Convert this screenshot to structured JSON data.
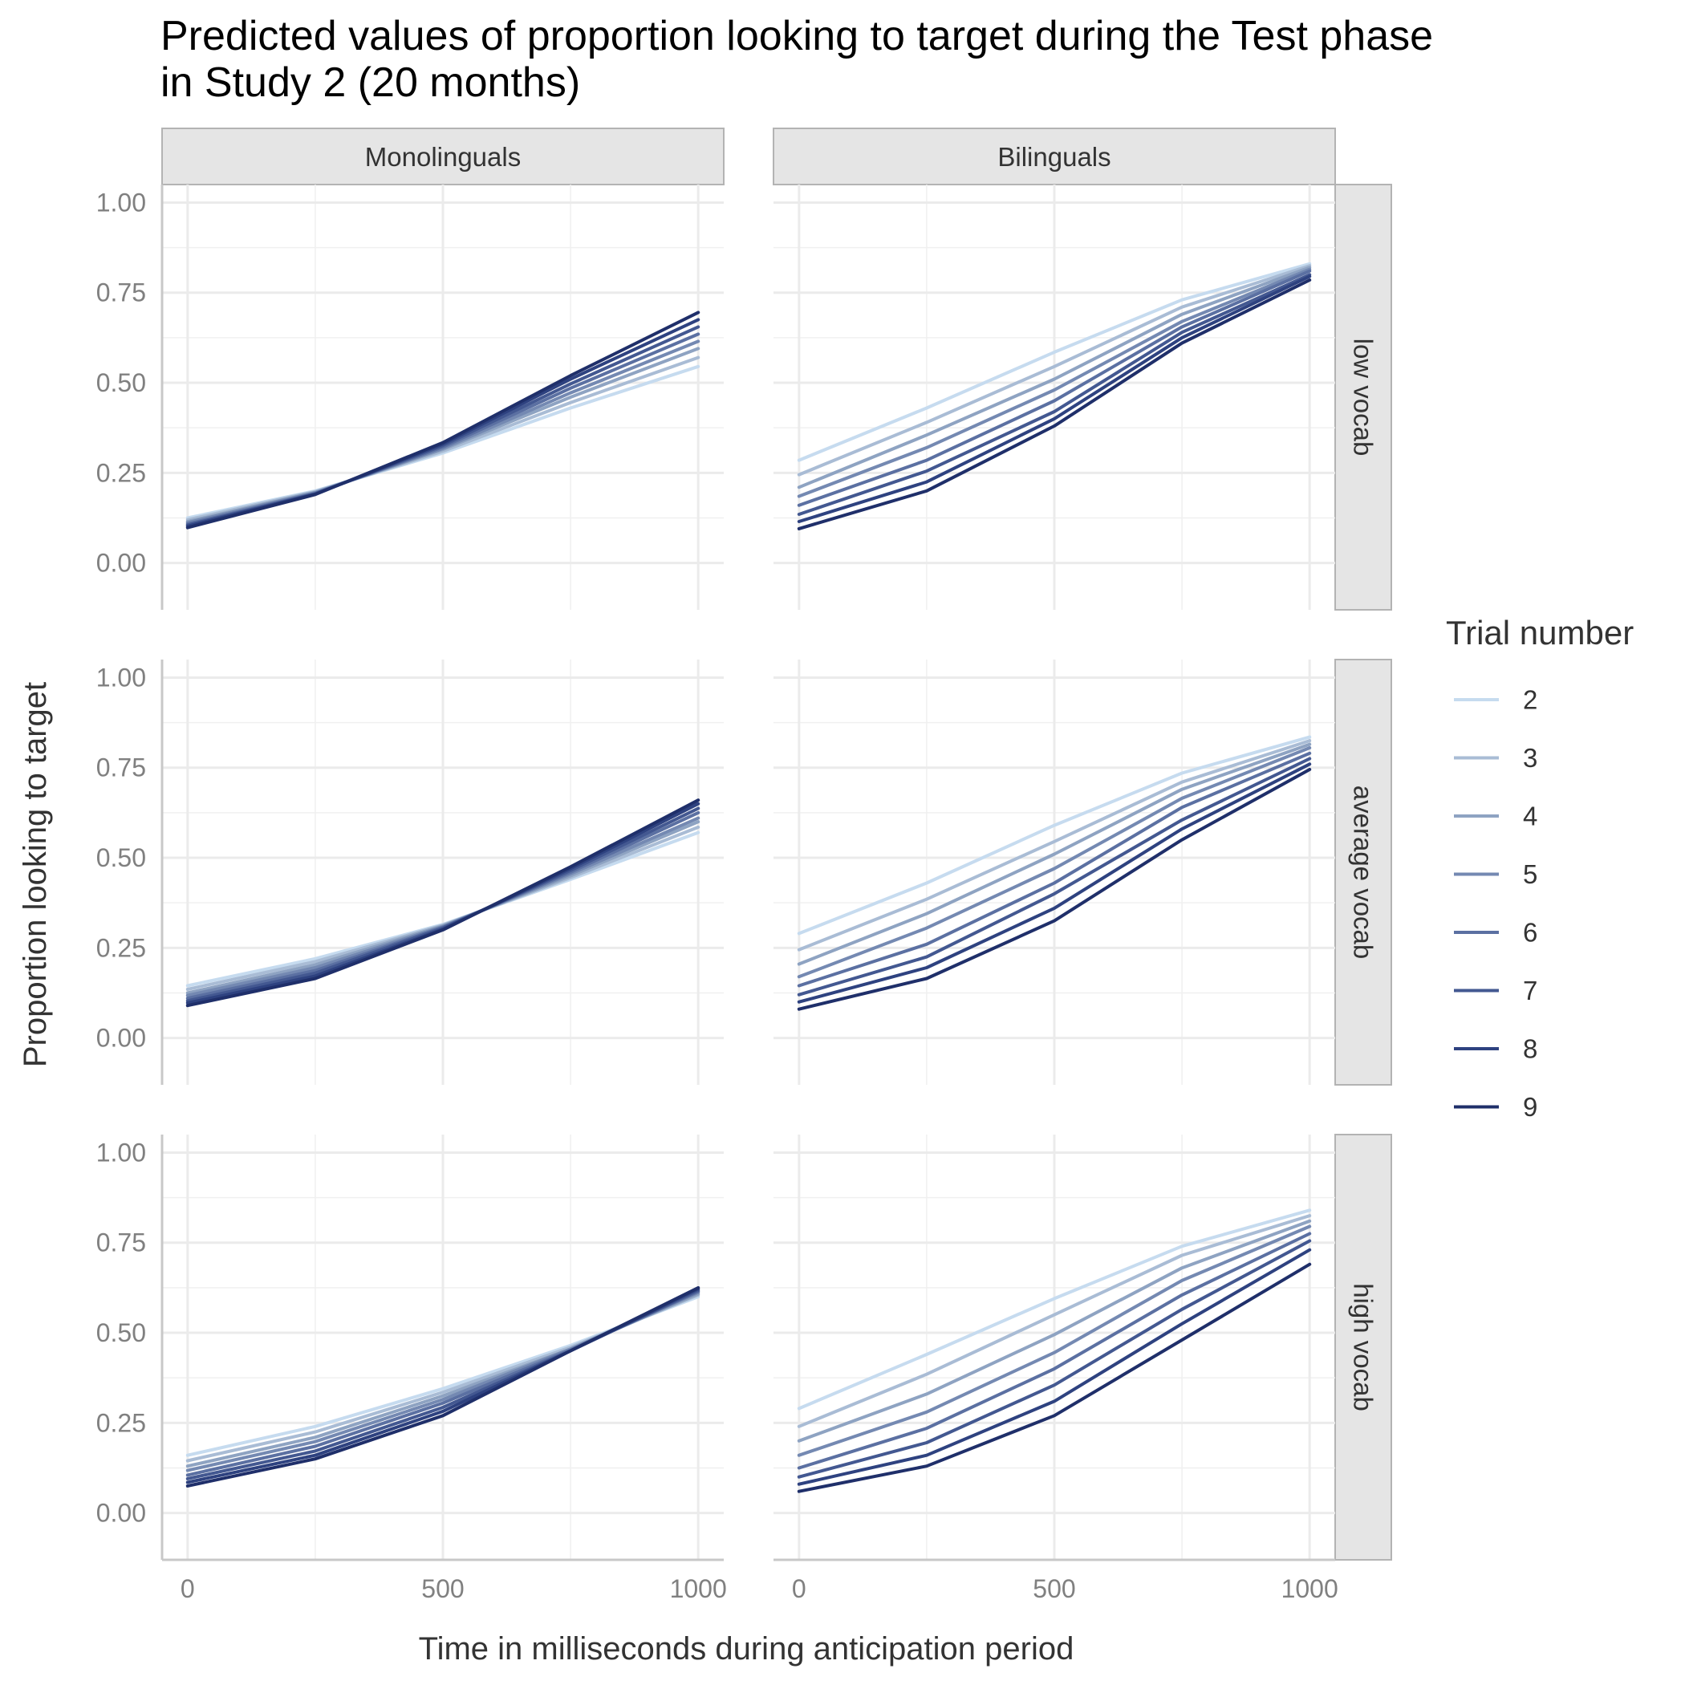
{
  "chart_data": {
    "type": "line",
    "title_lines": [
      "Predicted values of proportion looking to target during the Test phase",
      "in Study 2 (20 months)"
    ],
    "xlabel": "Time in milliseconds during anticipation period",
    "ylabel": "Proportion looking to target",
    "xlim": [
      -50,
      1050
    ],
    "ylim": [
      -0.13,
      1.05
    ],
    "x_ticks": [
      0,
      500,
      1000
    ],
    "x_tick_labels": [
      "0",
      "500",
      "1000"
    ],
    "y_ticks": [
      0,
      0.25,
      0.5,
      0.75,
      1.0
    ],
    "y_tick_labels": [
      "0.00",
      "0.25",
      "0.50",
      "0.75",
      "1.00"
    ],
    "grid": true,
    "facet_columns": [
      "Monolinguals",
      "Bilinguals"
    ],
    "facet_rows": [
      "low vocab",
      "average vocab",
      "high vocab"
    ],
    "legend": {
      "title": "Trial number",
      "position": "right",
      "entries": [
        "2",
        "3",
        "4",
        "5",
        "6",
        "7",
        "8",
        "9"
      ],
      "colors": [
        "#c6dbef",
        "#a9bcd5",
        "#8ea3c2",
        "#7489b2",
        "#5b70a2",
        "#435891",
        "#2e4280",
        "#1f2f6a"
      ]
    },
    "x": [
      0,
      250,
      500,
      750,
      1000
    ],
    "panels": [
      {
        "column": "Monolinguals",
        "row": "low vocab",
        "series": [
          {
            "name": "2",
            "values": [
              0.125,
              0.2,
              0.305,
              0.43,
              0.545
            ]
          },
          {
            "name": "3",
            "values": [
              0.12,
              0.198,
              0.31,
              0.445,
              0.57
            ]
          },
          {
            "name": "4",
            "values": [
              0.115,
              0.196,
              0.315,
              0.46,
              0.595
            ]
          },
          {
            "name": "5",
            "values": [
              0.112,
              0.195,
              0.318,
              0.472,
              0.615
            ]
          },
          {
            "name": "6",
            "values": [
              0.108,
              0.193,
              0.322,
              0.485,
              0.635
            ]
          },
          {
            "name": "7",
            "values": [
              0.105,
              0.192,
              0.326,
              0.497,
              0.655
            ]
          },
          {
            "name": "8",
            "values": [
              0.102,
              0.191,
              0.33,
              0.51,
              0.675
            ]
          },
          {
            "name": "9",
            "values": [
              0.098,
              0.19,
              0.334,
              0.52,
              0.695
            ]
          }
        ]
      },
      {
        "column": "Bilinguals",
        "row": "low vocab",
        "series": [
          {
            "name": "2",
            "values": [
              0.285,
              0.43,
              0.585,
              0.73,
              0.83
            ]
          },
          {
            "name": "3",
            "values": [
              0.245,
              0.39,
              0.545,
              0.71,
              0.825
            ]
          },
          {
            "name": "4",
            "values": [
              0.21,
              0.355,
              0.51,
              0.69,
              0.82
            ]
          },
          {
            "name": "5",
            "values": [
              0.185,
              0.32,
              0.48,
              0.67,
              0.815
            ]
          },
          {
            "name": "6",
            "values": [
              0.16,
              0.285,
              0.45,
              0.655,
              0.81
            ]
          },
          {
            "name": "7",
            "values": [
              0.135,
              0.255,
              0.42,
              0.64,
              0.8
            ]
          },
          {
            "name": "8",
            "values": [
              0.115,
              0.225,
              0.4,
              0.625,
              0.795
            ]
          },
          {
            "name": "9",
            "values": [
              0.095,
              0.2,
              0.38,
              0.61,
              0.785
            ]
          }
        ]
      },
      {
        "column": "Monolinguals",
        "row": "average vocab",
        "series": [
          {
            "name": "2",
            "values": [
              0.145,
              0.22,
              0.315,
              0.44,
              0.57
            ]
          },
          {
            "name": "3",
            "values": [
              0.135,
              0.212,
              0.313,
              0.445,
              0.585
            ]
          },
          {
            "name": "4",
            "values": [
              0.125,
              0.203,
              0.311,
              0.45,
              0.6
            ]
          },
          {
            "name": "5",
            "values": [
              0.118,
              0.195,
              0.309,
              0.455,
              0.61
            ]
          },
          {
            "name": "6",
            "values": [
              0.11,
              0.187,
              0.307,
              0.46,
              0.625
            ]
          },
          {
            "name": "7",
            "values": [
              0.103,
              0.18,
              0.305,
              0.465,
              0.637
            ]
          },
          {
            "name": "8",
            "values": [
              0.097,
              0.172,
              0.302,
              0.47,
              0.65
            ]
          },
          {
            "name": "9",
            "values": [
              0.09,
              0.165,
              0.3,
              0.475,
              0.66
            ]
          }
        ]
      },
      {
        "column": "Bilinguals",
        "row": "average vocab",
        "series": [
          {
            "name": "2",
            "values": [
              0.29,
              0.43,
              0.59,
              0.735,
              0.835
            ]
          },
          {
            "name": "3",
            "values": [
              0.245,
              0.385,
              0.545,
              0.71,
              0.825
            ]
          },
          {
            "name": "4",
            "values": [
              0.205,
              0.345,
              0.51,
              0.69,
              0.815
            ]
          },
          {
            "name": "5",
            "values": [
              0.17,
              0.305,
              0.47,
              0.665,
              0.805
            ]
          },
          {
            "name": "6",
            "values": [
              0.145,
              0.26,
              0.43,
              0.64,
              0.79
            ]
          },
          {
            "name": "7",
            "values": [
              0.12,
              0.225,
              0.4,
              0.605,
              0.775
            ]
          },
          {
            "name": "8",
            "values": [
              0.1,
              0.195,
              0.36,
              0.58,
              0.76
            ]
          },
          {
            "name": "9",
            "values": [
              0.08,
              0.165,
              0.325,
              0.55,
              0.745
            ]
          }
        ]
      },
      {
        "column": "Monolinguals",
        "row": "high vocab",
        "series": [
          {
            "name": "2",
            "values": [
              0.16,
              0.24,
              0.345,
              0.465,
              0.6
            ]
          },
          {
            "name": "3",
            "values": [
              0.145,
              0.225,
              0.335,
              0.46,
              0.605
            ]
          },
          {
            "name": "4",
            "values": [
              0.13,
              0.21,
              0.325,
              0.455,
              0.608
            ]
          },
          {
            "name": "5",
            "values": [
              0.118,
              0.198,
              0.315,
              0.455,
              0.612
            ]
          },
          {
            "name": "6",
            "values": [
              0.105,
              0.185,
              0.305,
              0.452,
              0.615
            ]
          },
          {
            "name": "7",
            "values": [
              0.095,
              0.172,
              0.293,
              0.45,
              0.618
            ]
          },
          {
            "name": "8",
            "values": [
              0.085,
              0.16,
              0.282,
              0.45,
              0.622
            ]
          },
          {
            "name": "9",
            "values": [
              0.075,
              0.15,
              0.27,
              0.45,
              0.625
            ]
          }
        ]
      },
      {
        "column": "Bilinguals",
        "row": "high vocab",
        "series": [
          {
            "name": "2",
            "values": [
              0.29,
              0.44,
              0.595,
              0.74,
              0.84
            ]
          },
          {
            "name": "3",
            "values": [
              0.24,
              0.385,
              0.55,
              0.715,
              0.825
            ]
          },
          {
            "name": "4",
            "values": [
              0.2,
              0.33,
              0.495,
              0.68,
              0.81
            ]
          },
          {
            "name": "5",
            "values": [
              0.16,
              0.28,
              0.445,
              0.645,
              0.795
            ]
          },
          {
            "name": "6",
            "values": [
              0.125,
              0.235,
              0.4,
              0.605,
              0.775
            ]
          },
          {
            "name": "7",
            "values": [
              0.1,
              0.195,
              0.355,
              0.565,
              0.755
            ]
          },
          {
            "name": "8",
            "values": [
              0.08,
              0.16,
              0.31,
              0.525,
              0.73
            ]
          },
          {
            "name": "9",
            "values": [
              0.06,
              0.13,
              0.27,
              0.48,
              0.69
            ]
          }
        ]
      }
    ]
  }
}
